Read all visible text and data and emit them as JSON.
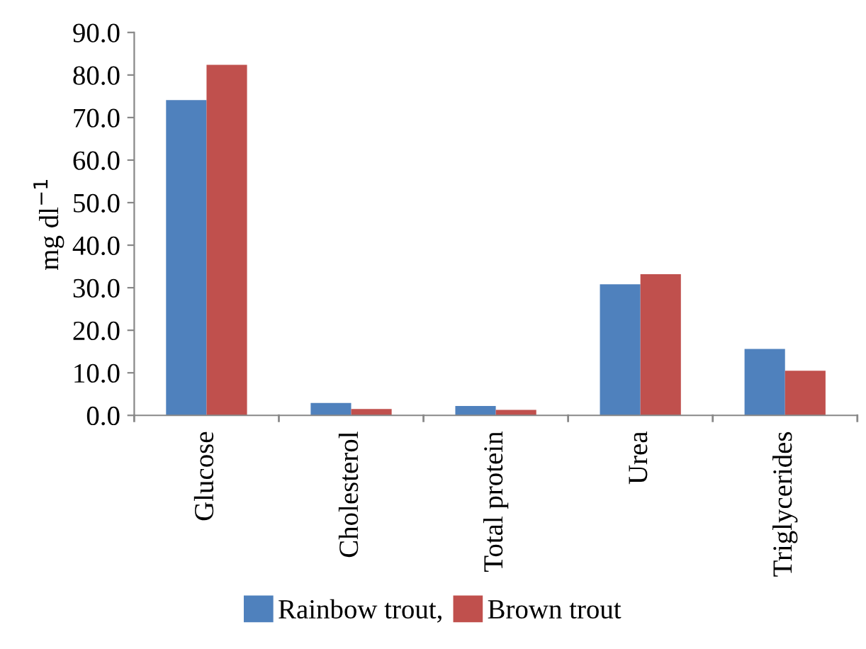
{
  "chart_data": {
    "type": "bar",
    "ylabel": "mg dl$^{−1}$",
    "categories": [
      "Glucose",
      "Cholesterol",
      "Total protein",
      "Urea",
      "Triglycerides"
    ],
    "series": [
      {
        "name": "Rainbow trout,",
        "color": "#4f81bd",
        "values": [
          74.1,
          2.9,
          2.2,
          30.8,
          15.6
        ]
      },
      {
        "name": "Brown trout",
        "color": "#c0504d",
        "values": [
          82.4,
          1.5,
          1.3,
          33.2,
          10.5
        ]
      }
    ],
    "ylim": [
      0,
      90
    ],
    "yticks": [
      {
        "value": 0,
        "label": "0.0"
      },
      {
        "value": 10,
        "label": "10.0"
      },
      {
        "value": 20,
        "label": "20.0"
      },
      {
        "value": 30,
        "label": "30.0"
      },
      {
        "value": 40,
        "label": "40.0"
      },
      {
        "value": 50,
        "label": "50.0"
      },
      {
        "value": 60,
        "label": "60.0"
      },
      {
        "value": 70,
        "label": "70.0"
      },
      {
        "value": 80,
        "label": "80.0"
      },
      {
        "value": 90,
        "label": "90.0"
      }
    ],
    "grid": false,
    "legend": "bottom"
  }
}
